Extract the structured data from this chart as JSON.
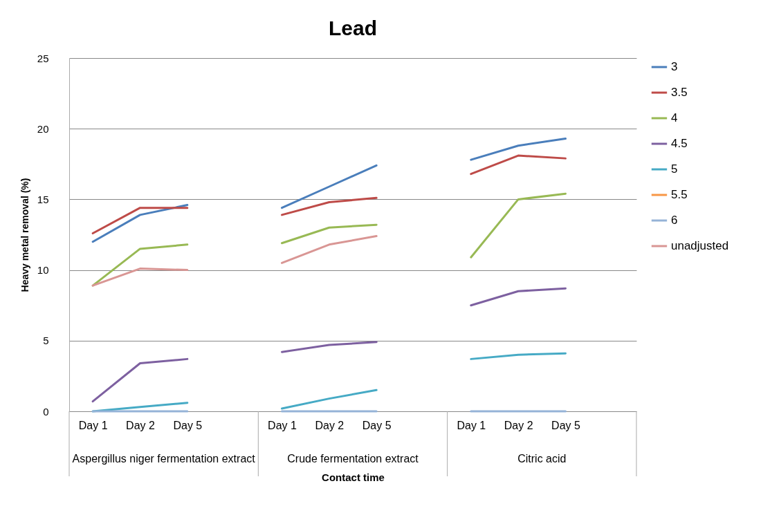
{
  "chart_data": {
    "type": "line",
    "title": "Lead",
    "xlabel": "Contact time",
    "ylabel": "Heavy metal removal (%)",
    "categories": [
      "Day 1",
      "Day 2",
      "Day 5",
      null,
      "Day 1",
      "Day 2",
      "Day 5",
      null,
      "Day 1",
      "Day 2",
      "Day 5",
      null
    ],
    "annotations": [
      "Aspergillus niger fermentation extract",
      "Crude fermentation extract",
      "Citric acid"
    ],
    "series": [
      {
        "name": "3",
        "color": "#4a7ebb",
        "values": [
          12.0,
          13.9,
          14.6,
          null,
          14.4,
          15.9,
          17.4,
          null,
          17.8,
          18.8,
          19.3,
          null
        ]
      },
      {
        "name": "3.5",
        "color": "#be4b48",
        "values": [
          12.6,
          14.4,
          14.4,
          null,
          13.9,
          14.8,
          15.1,
          null,
          16.8,
          18.1,
          17.9,
          null
        ]
      },
      {
        "name": "4",
        "color": "#98b954",
        "values": [
          8.9,
          11.5,
          11.8,
          null,
          11.9,
          13.0,
          13.2,
          null,
          10.9,
          15.0,
          15.4,
          null
        ]
      },
      {
        "name": "4.5",
        "color": "#7d60a0",
        "values": [
          0.7,
          3.4,
          3.7,
          null,
          4.2,
          4.7,
          4.9,
          null,
          7.5,
          8.5,
          8.7,
          null
        ]
      },
      {
        "name": "5",
        "color": "#46aac5",
        "values": [
          0.0,
          0.3,
          0.6,
          null,
          0.2,
          0.9,
          1.5,
          null,
          3.7,
          4.0,
          4.1,
          null
        ]
      },
      {
        "name": "5.5",
        "color": "#f79646",
        "values": [
          null,
          null,
          null,
          null,
          null,
          null,
          null,
          null,
          null,
          null,
          null,
          null
        ]
      },
      {
        "name": "6",
        "color": "#95b3d7",
        "values": [
          0,
          0,
          0,
          null,
          0,
          0,
          0,
          null,
          0,
          0,
          0,
          null
        ]
      },
      {
        "name": "unadjusted",
        "color": "#d99694",
        "values": [
          8.9,
          10.1,
          10.0,
          null,
          10.5,
          11.8,
          12.4,
          null,
          null,
          null,
          null,
          null
        ]
      }
    ],
    "ylim": [
      0,
      25
    ],
    "yticks": [
      0,
      5,
      10,
      15,
      20,
      25
    ],
    "grid": "y",
    "legend": "right"
  }
}
